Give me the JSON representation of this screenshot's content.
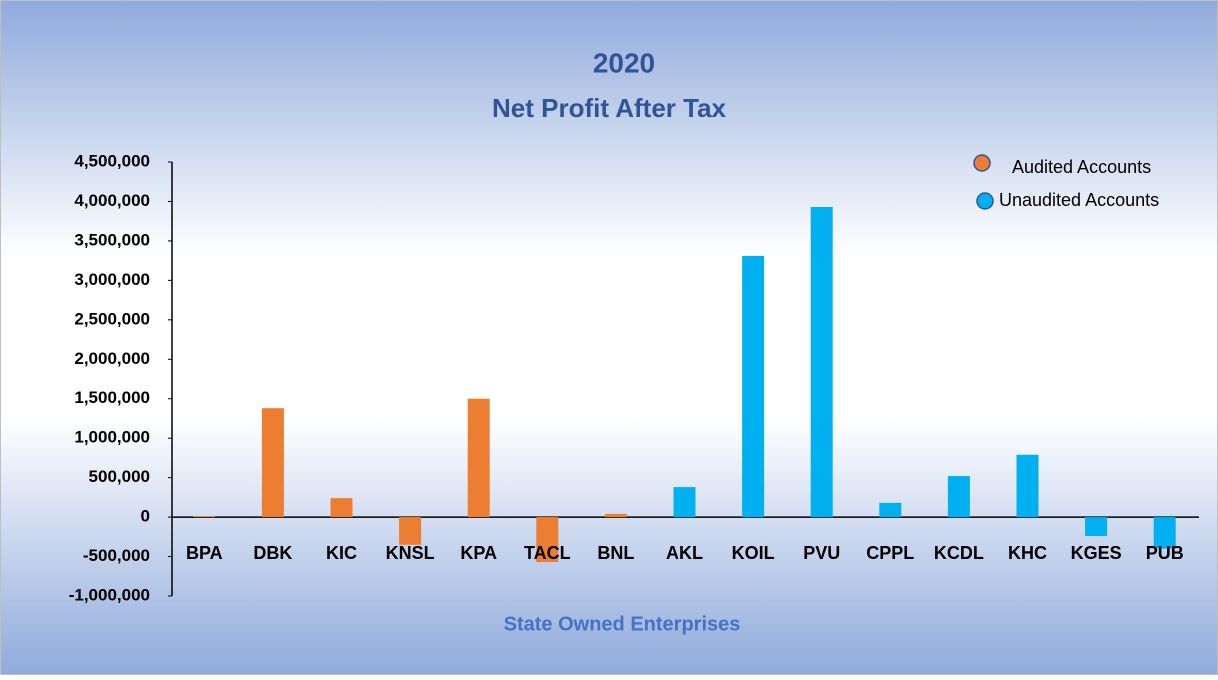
{
  "chart_data": {
    "type": "bar",
    "title": "2020",
    "subtitle": "Net Profit After Tax",
    "x_label": "State Owned Enterprises",
    "categories": [
      "BPA",
      "DBK",
      "KIC",
      "KNSL",
      "KPA",
      "TACL",
      "BNL",
      "AKL",
      "KOIL",
      "PVU",
      "CPPL",
      "KCDL",
      "KHC",
      "KGES",
      "PUB"
    ],
    "series": [
      {
        "name": "Audited Accounts",
        "color": "#ed7d31",
        "values": [
          10000,
          1380000,
          240000,
          -350000,
          1500000,
          -570000,
          40000,
          null,
          null,
          null,
          null,
          null,
          null,
          null,
          null
        ]
      },
      {
        "name": "Unaudited Accounts",
        "color": "#00b0f0",
        "values": [
          null,
          null,
          null,
          null,
          null,
          null,
          null,
          380000,
          3310000,
          3930000,
          180000,
          520000,
          790000,
          -240000,
          -400000
        ]
      }
    ],
    "ylim": [
      -1000000,
      4500000
    ],
    "yticks": [
      {
        "value": -1000000,
        "label": "-1,000,000"
      },
      {
        "value": -500000,
        "label": "-500,000"
      },
      0,
      {
        "value": 500000,
        "label": "500,000"
      },
      {
        "value": 1000000,
        "label": "1,000,000"
      },
      {
        "value": 1500000,
        "label": "1,500,000"
      },
      {
        "value": 2000000,
        "label": "2,000,000"
      },
      {
        "value": 2500000,
        "label": "2,500,000"
      },
      {
        "value": 3000000,
        "label": "3,000,000"
      },
      {
        "value": 3500000,
        "label": "3,500,000"
      },
      {
        "value": 4000000,
        "label": "4,000,000"
      },
      {
        "value": 4500000,
        "label": "4,500,000"
      }
    ],
    "grid": false,
    "legend": "upper right"
  }
}
